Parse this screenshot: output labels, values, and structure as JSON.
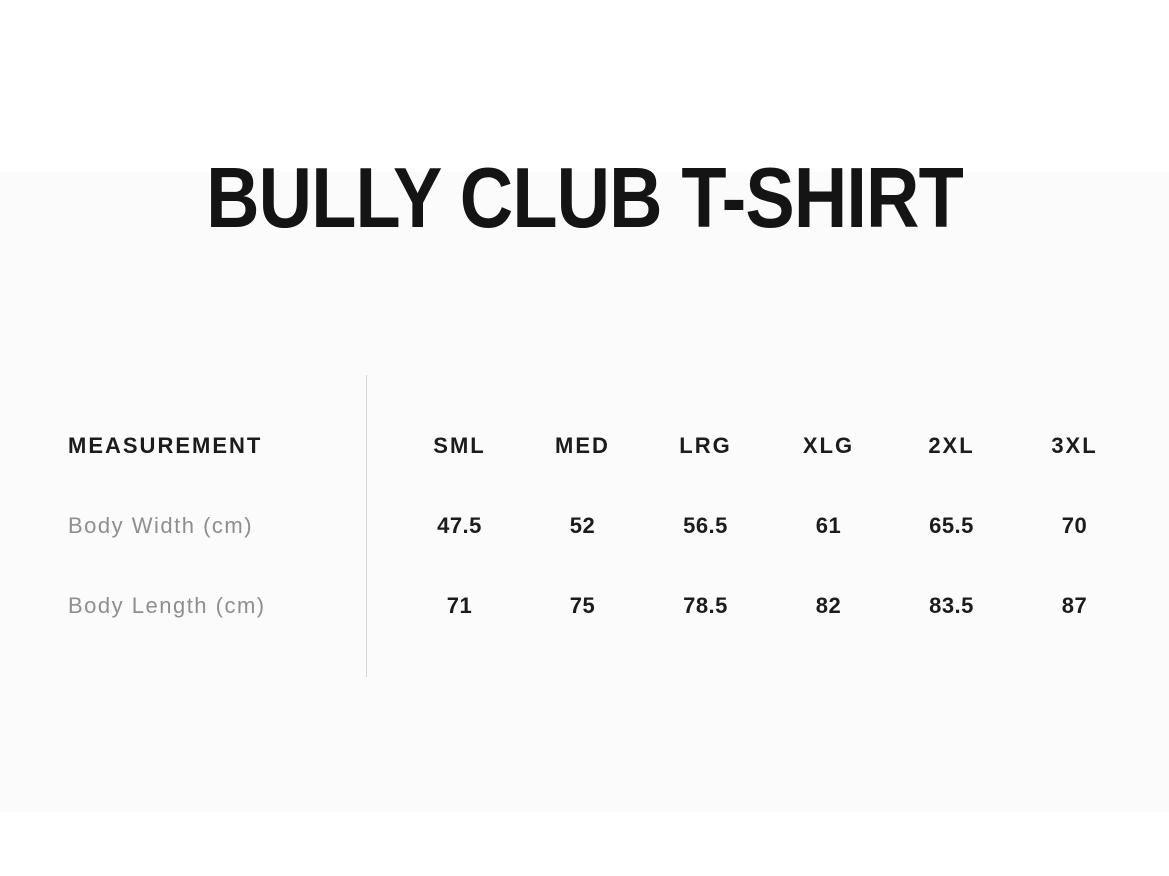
{
  "title": "BULLY CLUB T-SHIRT",
  "size_chart": {
    "header": {
      "measurement_label": "MEASUREMENT",
      "sizes": [
        "SML",
        "MED",
        "LRG",
        "XLG",
        "2XL",
        "3XL"
      ]
    },
    "rows": [
      {
        "label": "Body Width (cm)",
        "values": [
          "47.5",
          "52",
          "56.5",
          "61",
          "65.5",
          "70"
        ]
      },
      {
        "label": "Body Length (cm)",
        "values": [
          "71",
          "75",
          "78.5",
          "82",
          "83.5",
          "87"
        ]
      }
    ]
  },
  "colors": {
    "page_background": "#ffffff",
    "panel_background": "#fbfbfb",
    "text_primary": "#1c1c1c",
    "text_muted": "#8e8e8e",
    "divider": "#d6d6d6"
  }
}
